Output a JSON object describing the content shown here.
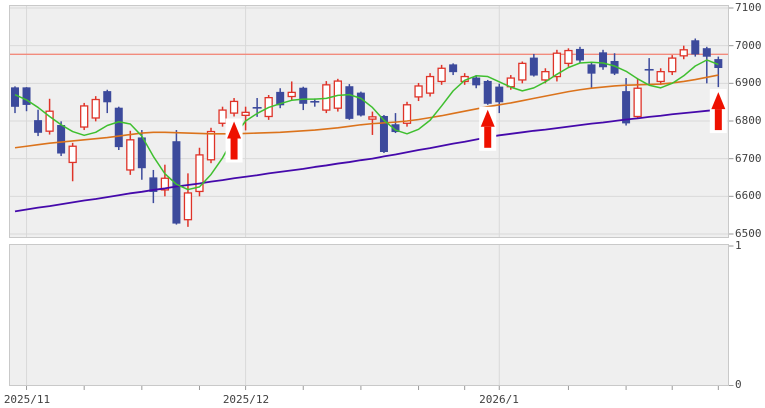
{
  "chart_data": {
    "type": "candlestick",
    "title": "",
    "y_axis": {
      "min": 6500,
      "max": 7100,
      "step": 100,
      "labels": [
        "7100",
        "7000",
        "6900",
        "6800",
        "6700",
        "6600",
        "6500"
      ]
    },
    "sub_panel": {
      "labels": [
        "1",
        "0"
      ],
      "values": []
    },
    "x_axis": {
      "labels": [
        {
          "text": "2025/11",
          "candle": 2
        },
        {
          "text": "2025/12",
          "candle": 21
        },
        {
          "text": "2026/1",
          "candle": 43
        }
      ],
      "major_tick_candles": [
        2,
        21,
        43
      ],
      "minor_tick_candles": [
        7,
        12,
        17,
        26,
        31,
        36,
        40,
        49,
        54,
        58,
        62
      ]
    },
    "resistance_line_value": 6977,
    "candles": [
      [
        6888,
        6892,
        6821,
        6839,
        "d"
      ],
      [
        6888,
        6890,
        6826,
        6844,
        "d"
      ],
      [
        6801,
        6830,
        6760,
        6770,
        "d"
      ],
      [
        6773,
        6859,
        6764,
        6826,
        "u"
      ],
      [
        6788,
        6799,
        6707,
        6715,
        "d"
      ],
      [
        6690,
        6742,
        6640,
        6733,
        "u"
      ],
      [
        6784,
        6848,
        6776,
        6840,
        "u"
      ],
      [
        6808,
        6866,
        6799,
        6857,
        "u"
      ],
      [
        6878,
        6883,
        6821,
        6851,
        "d"
      ],
      [
        6834,
        6838,
        6723,
        6732,
        "d"
      ],
      [
        6670,
        6774,
        6657,
        6750,
        "u"
      ],
      [
        6755,
        6776,
        6644,
        6676,
        "d"
      ],
      [
        6649,
        6670,
        6582,
        6613,
        "d"
      ],
      [
        6617,
        6684,
        6600,
        6648,
        "u"
      ],
      [
        6745,
        6776,
        6525,
        6529,
        "d"
      ],
      [
        6538,
        6661,
        6519,
        6609,
        "u"
      ],
      [
        6613,
        6729,
        6600,
        6710,
        "u"
      ],
      [
        6697,
        6782,
        6688,
        6772,
        "u"
      ],
      [
        6794,
        6838,
        6785,
        6829,
        "u"
      ],
      [
        6821,
        6861,
        6812,
        6852,
        "u"
      ],
      [
        6815,
        6838,
        6775,
        6823,
        "u"
      ],
      [
        6835,
        6861,
        6811,
        6835,
        "d"
      ],
      [
        6812,
        6869,
        6803,
        6862,
        "u"
      ],
      [
        6876,
        6887,
        6834,
        6843,
        "d"
      ],
      [
        6865,
        6905,
        6856,
        6876,
        "u"
      ],
      [
        6887,
        6891,
        6829,
        6847,
        "d"
      ],
      [
        6851,
        6860,
        6838,
        6851,
        "d"
      ],
      [
        6829,
        6906,
        6821,
        6896,
        "u"
      ],
      [
        6834,
        6912,
        6825,
        6906,
        "u"
      ],
      [
        6891,
        6898,
        6803,
        6807,
        "d"
      ],
      [
        6874,
        6878,
        6812,
        6816,
        "d"
      ],
      [
        6805,
        6825,
        6763,
        6811,
        "u"
      ],
      [
        6812,
        6816,
        6715,
        6719,
        "d"
      ],
      [
        6790,
        6821,
        6768,
        6772,
        "d"
      ],
      [
        6794,
        6851,
        6785,
        6843,
        "u"
      ],
      [
        6864,
        6901,
        6853,
        6893,
        "u"
      ],
      [
        6874,
        6927,
        6865,
        6918,
        "u"
      ],
      [
        6905,
        6949,
        6896,
        6940,
        "u"
      ],
      [
        6949,
        6953,
        6922,
        6931,
        "d"
      ],
      [
        6905,
        6927,
        6896,
        6918,
        "u"
      ],
      [
        6914,
        6922,
        6887,
        6896,
        "d"
      ],
      [
        6905,
        6909,
        6843,
        6847,
        "d"
      ],
      [
        6890,
        6899,
        6821,
        6851,
        "d"
      ],
      [
        6891,
        6922,
        6883,
        6914,
        "u"
      ],
      [
        6909,
        6958,
        6900,
        6953,
        "u"
      ],
      [
        6967,
        6978,
        6918,
        6922,
        "d"
      ],
      [
        6909,
        6940,
        6900,
        6931,
        "u"
      ],
      [
        6918,
        6989,
        6905,
        6980,
        "u"
      ],
      [
        6953,
        6993,
        6944,
        6987,
        "u"
      ],
      [
        6990,
        6997,
        6953,
        6962,
        "d"
      ],
      [
        6949,
        6954,
        6887,
        6927,
        "d"
      ],
      [
        6981,
        6989,
        6936,
        6944,
        "d"
      ],
      [
        6958,
        6980,
        6922,
        6927,
        "d"
      ],
      [
        6878,
        6914,
        6788,
        6795,
        "d"
      ],
      [
        6812,
        6912,
        6808,
        6887,
        "u"
      ],
      [
        6936,
        6967,
        6896,
        6936,
        "d"
      ],
      [
        6905,
        6940,
        6896,
        6931,
        "u"
      ],
      [
        6931,
        6975,
        6922,
        6967,
        "u"
      ],
      [
        6973,
        7000,
        6964,
        6989,
        "u"
      ],
      [
        7013,
        7019,
        6971,
        6978,
        "d"
      ],
      [
        6992,
        6997,
        6900,
        6972,
        "d"
      ],
      [
        6963,
        6971,
        6890,
        6942,
        "d"
      ]
    ],
    "moving_averages": {
      "short": {
        "name": "short-ma",
        "color": "#3fbf2f",
        "values": [
          6870,
          6856,
          6836,
          6812,
          6790,
          6772,
          6762,
          6770,
          6788,
          6798,
          6792,
          6760,
          6706,
          6660,
          6632,
          6618,
          6625,
          6658,
          6702,
          6758,
          6800,
          6820,
          6836,
          6846,
          6855,
          6858,
          6858,
          6860,
          6868,
          6870,
          6860,
          6836,
          6802,
          6776,
          6766,
          6778,
          6802,
          6840,
          6880,
          6908,
          6920,
          6918,
          6904,
          6890,
          6880,
          6888,
          6904,
          6924,
          6942,
          6954,
          6956,
          6954,
          6946,
          6932,
          6912,
          6895,
          6888,
          6900,
          6920,
          6946,
          6962,
          6950
        ]
      },
      "mid": {
        "name": "mid-ma",
        "color": "#db731c",
        "values": [
          6729,
          6733,
          6737,
          6741,
          6744,
          6747,
          6750,
          6753,
          6756,
          6760,
          6764,
          6768,
          6770,
          6770,
          6769,
          6768,
          6767,
          6766,
          6766,
          6766,
          6767,
          6768,
          6769,
          6770,
          6772,
          6774,
          6776,
          6779,
          6782,
          6786,
          6790,
          6793,
          6795,
          6797,
          6800,
          6804,
          6809,
          6814,
          6820,
          6826,
          6832,
          6838,
          6843,
          6848,
          6854,
          6860,
          6866,
          6872,
          6878,
          6883,
          6887,
          6890,
          6893,
          6895,
          6896,
          6897,
          6898,
          6901,
          6905,
          6910,
          6916,
          6922
        ]
      },
      "long": {
        "name": "long-ma",
        "color": "#4509ab",
        "values": [
          6560,
          6565,
          6570,
          6574,
          6579,
          6584,
          6589,
          6593,
          6598,
          6603,
          6608,
          6612,
          6617,
          6621,
          6626,
          6630,
          6634,
          6639,
          6643,
          6648,
          6652,
          6656,
          6661,
          6665,
          6669,
          6673,
          6678,
          6682,
          6687,
          6691,
          6696,
          6700,
          6706,
          6711,
          6717,
          6723,
          6728,
          6734,
          6740,
          6745,
          6751,
          6757,
          6762,
          6766,
          6770,
          6774,
          6777,
          6781,
          6785,
          6789,
          6793,
          6796,
          6800,
          6804,
          6807,
          6811,
          6814,
          6818,
          6821,
          6824,
          6827,
          6830
        ]
      }
    },
    "signal_arrows": {
      "candle_indices": [
        20,
        42,
        62
      ]
    },
    "colors": {
      "down_candle": "#3c4a9c",
      "up_candle": "#df3328",
      "resistance_line": "#f28b7d",
      "arrow": "#ee1100",
      "panel_bg": "#efefef",
      "grid": "#d9d9d9",
      "panel_border": "#c9c9c9",
      "tick": "#9a9a9a",
      "label_text": "#404040"
    }
  }
}
